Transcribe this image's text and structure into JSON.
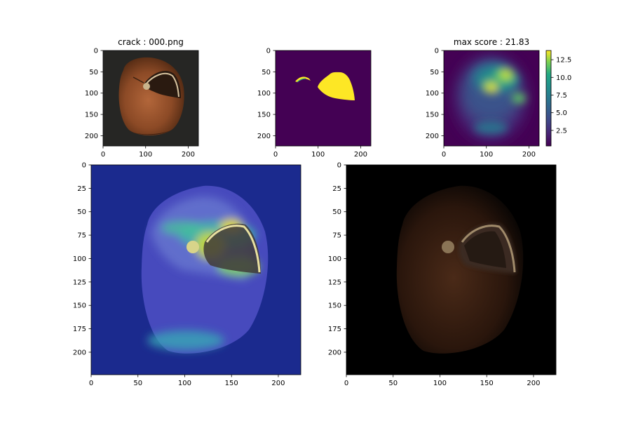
{
  "chart_data": [
    {
      "type": "image",
      "title": "crack : 000.png",
      "content": "hazelnut photo",
      "xticks": [
        0,
        100,
        200
      ],
      "yticks": [
        0,
        50,
        100,
        150,
        200
      ],
      "xlim": [
        0,
        224
      ],
      "ylim": [
        224,
        0
      ]
    },
    {
      "type": "image",
      "title": "",
      "content": "ground-truth mask (viridis)",
      "xticks": [
        0,
        100,
        200
      ],
      "yticks": [
        0,
        50,
        100,
        150,
        200
      ],
      "xlim": [
        0,
        224
      ],
      "ylim": [
        224,
        0
      ]
    },
    {
      "type": "heatmap",
      "title": "max score : 21.83",
      "colormap": "viridis",
      "xticks": [
        0,
        100,
        200
      ],
      "yticks": [
        0,
        50,
        100,
        150,
        200
      ],
      "xlim": [
        0,
        224
      ],
      "ylim": [
        224,
        0
      ],
      "colorbar": {
        "range": [
          0.3,
          13.8
        ],
        "ticks": [
          2.5,
          5.0,
          7.5,
          10.0,
          12.5
        ],
        "tick_labels": [
          "2.5",
          "5.0",
          "7.5",
          "10.0",
          "12.5"
        ]
      }
    },
    {
      "type": "image",
      "title": "",
      "content": "anomaly heatmap overlay on photo",
      "xticks": [
        0,
        50,
        100,
        150,
        200
      ],
      "yticks": [
        0,
        25,
        50,
        75,
        100,
        125,
        150,
        175,
        200
      ],
      "xlim": [
        0,
        224
      ],
      "ylim": [
        224,
        0
      ]
    },
    {
      "type": "image",
      "title": "",
      "content": "photo masked by anomaly score",
      "xticks": [
        0,
        50,
        100,
        150,
        200
      ],
      "yticks": [
        0,
        25,
        50,
        75,
        100,
        125,
        150,
        175,
        200
      ],
      "xlim": [
        0,
        224
      ],
      "ylim": [
        224,
        0
      ]
    }
  ],
  "colors": {
    "mask_background": "#440154",
    "mask_foreground": "#fde725",
    "viridis_low": "#440154",
    "viridis_high": "#fde725"
  }
}
